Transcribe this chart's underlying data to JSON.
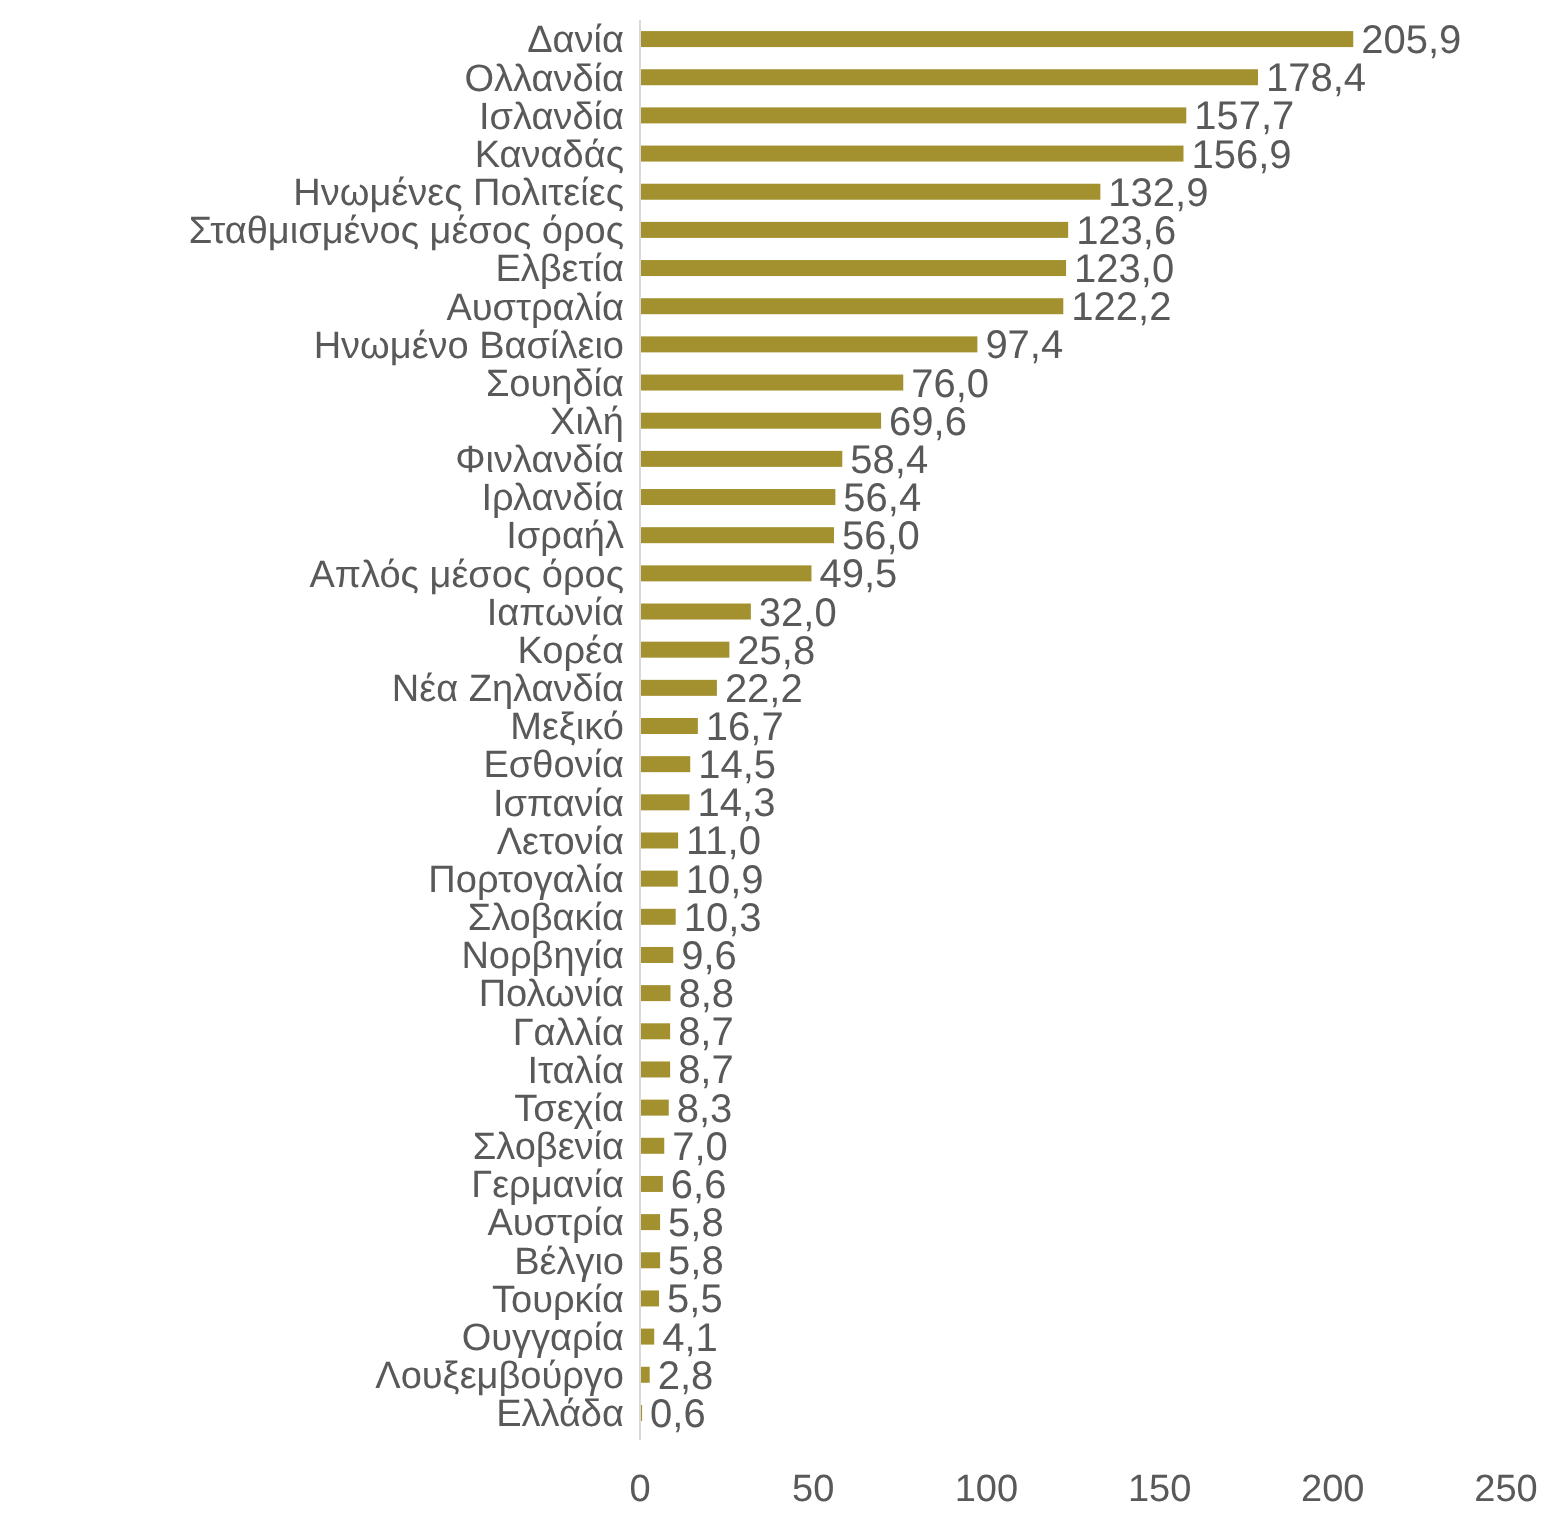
{
  "chart_data": {
    "type": "bar",
    "orientation": "horizontal",
    "color": "#a3912f",
    "categories": [
      "Δανία",
      "Ολλανδία",
      "Ισλανδία",
      "Καναδάς",
      "Ηνωμένες Πολιτείες",
      "Σταθμισμένος μέσος όρος",
      "Ελβετία",
      "Αυστραλία",
      "Ηνωμένο Βασίλειο",
      "Σουηδία",
      "Χιλή",
      "Φινλανδία",
      "Ιρλανδία",
      "Ισραήλ",
      "Απλός μέσος όρος",
      "Ιαπωνία",
      "Κορέα",
      "Νέα Ζηλανδία",
      "Μεξικό",
      "Εσθονία",
      "Ισπανία",
      "Λετονία",
      "Πορτογαλία",
      "Σλοβακία",
      "Νορβηγία",
      "Πολωνία",
      "Γαλλία",
      "Ιταλία",
      "Τσεχία",
      "Σλοβενία",
      "Γερμανία",
      "Αυστρία",
      "Βέλγιο",
      "Τουρκία",
      "Ουγγαρία",
      "Λουξεμβούργο",
      "Ελλάδα"
    ],
    "values": [
      205.9,
      178.4,
      157.7,
      156.9,
      132.9,
      123.6,
      123.0,
      122.2,
      97.4,
      76.0,
      69.6,
      58.4,
      56.4,
      56.0,
      49.5,
      32.0,
      25.8,
      22.2,
      16.7,
      14.5,
      14.3,
      11.0,
      10.9,
      10.3,
      9.6,
      8.8,
      8.7,
      8.7,
      8.3,
      7.0,
      6.6,
      5.8,
      5.8,
      5.5,
      4.1,
      2.8,
      0.6
    ],
    "value_labels": [
      "205,9",
      "178,4",
      "157,7",
      "156,9",
      "132,9",
      "123,6",
      "123,0",
      "122,2",
      "97,4",
      "76,0",
      "69,6",
      "58,4",
      "56,4",
      "56,0",
      "49,5",
      "32,0",
      "25,8",
      "22,2",
      "16,7",
      "14,5",
      "14,3",
      "11,0",
      "10,9",
      "10,3",
      "9,6",
      "8,8",
      "8,7",
      "8,7",
      "8,3",
      "7,0",
      "6,6",
      "5,8",
      "5,8",
      "5,5",
      "4,1",
      "2,8",
      "0,6"
    ],
    "xlim": [
      0,
      250
    ],
    "xticks": [
      0,
      50,
      100,
      150,
      200,
      250
    ],
    "grid": false
  }
}
